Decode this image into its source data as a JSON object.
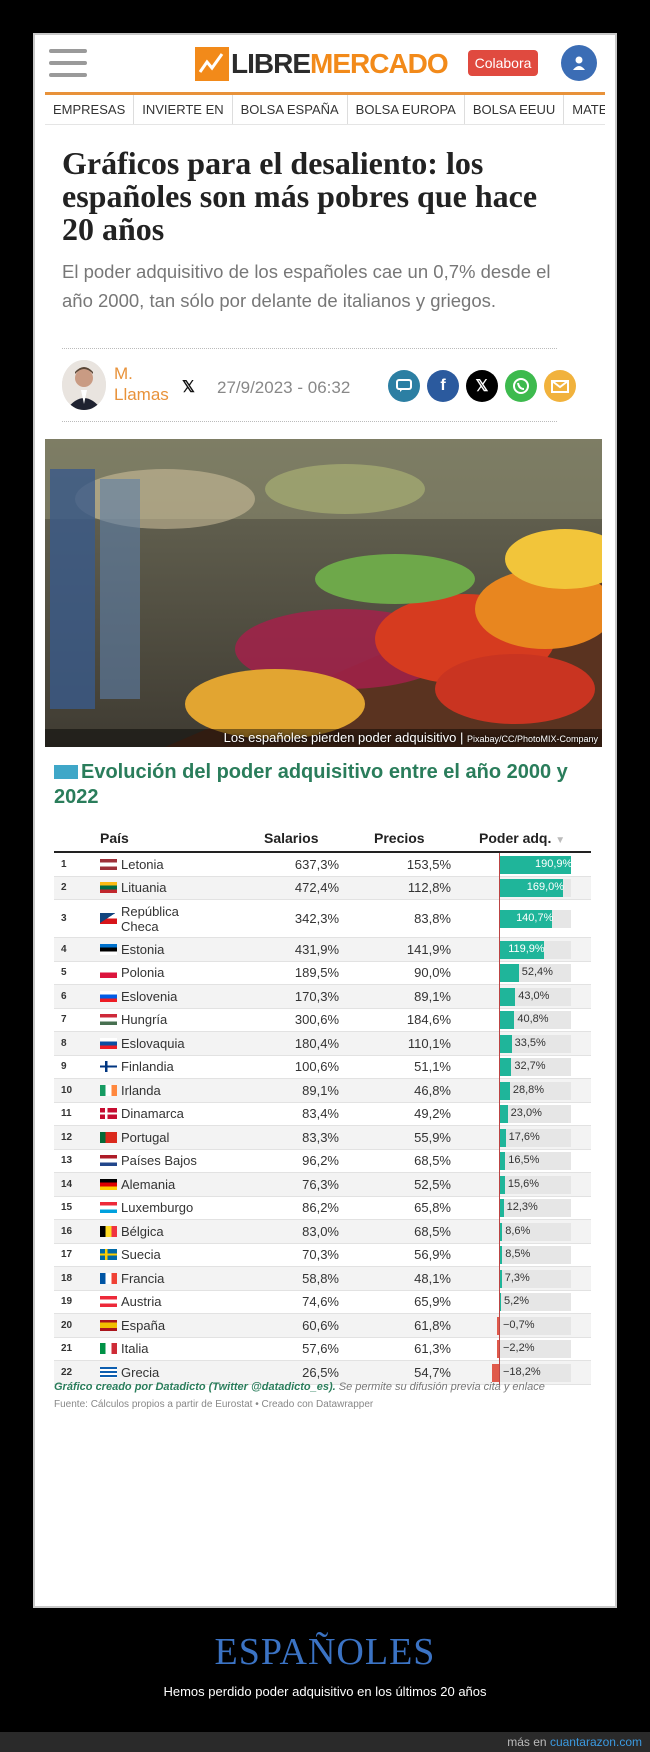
{
  "header": {
    "logo_libre": "LIBRE",
    "logo_mercado": "MERCADO",
    "colabora_label": "Colabora",
    "accent_color": "#f28a1a"
  },
  "nav": [
    "EMPRESAS",
    "INVIERTE EN",
    "BOLSA ESPAÑA",
    "BOLSA EUROPA",
    "BOLSA EEUU",
    "MATERIAS PR"
  ],
  "article": {
    "title": "Gráficos para el desaliento: los españoles son más pobres que hace 20 años",
    "subtitle": "El poder adquisitivo de los españoles cae un 0,7% desde el año 2000, tan sólo por delante de italianos y griegos.",
    "author": "M. Llamas",
    "date": "27/9/2023 - 06:32",
    "photo_caption": "Los españoles pierden poder adquisitivo",
    "photo_credit": "Pixabay/CC/PhotoMIX-Company"
  },
  "share_icons": [
    "comment-icon",
    "facebook-icon",
    "x-icon",
    "whatsapp-icon",
    "email-icon"
  ],
  "chart_data": {
    "type": "table",
    "title": "Evolución del poder adquisitivo entre el año 2000 y 2022",
    "columns": [
      "País",
      "Salarios",
      "Precios",
      "Poder adq."
    ],
    "rows": [
      {
        "rank": "1",
        "country": "Letonia",
        "salarios": "637,3%",
        "precios": "153,5%",
        "poder": "190,9%",
        "value": 190.9,
        "flag": "lv"
      },
      {
        "rank": "2",
        "country": "Lituania",
        "salarios": "472,4%",
        "precios": "112,8%",
        "poder": "169,0%",
        "value": 169.0,
        "flag": "lt"
      },
      {
        "rank": "3",
        "country": "República Checa",
        "salarios": "342,3%",
        "precios": "83,8%",
        "poder": "140,7%",
        "value": 140.7,
        "flag": "cz"
      },
      {
        "rank": "4",
        "country": "Estonia",
        "salarios": "431,9%",
        "precios": "141,9%",
        "poder": "119,9%",
        "value": 119.9,
        "flag": "ee"
      },
      {
        "rank": "5",
        "country": "Polonia",
        "salarios": "189,5%",
        "precios": "90,0%",
        "poder": "52,4%",
        "value": 52.4,
        "flag": "pl"
      },
      {
        "rank": "6",
        "country": "Eslovenia",
        "salarios": "170,3%",
        "precios": "89,1%",
        "poder": "43,0%",
        "value": 43.0,
        "flag": "si"
      },
      {
        "rank": "7",
        "country": "Hungría",
        "salarios": "300,6%",
        "precios": "184,6%",
        "poder": "40,8%",
        "value": 40.8,
        "flag": "hu"
      },
      {
        "rank": "8",
        "country": "Eslovaquia",
        "salarios": "180,4%",
        "precios": "110,1%",
        "poder": "33,5%",
        "value": 33.5,
        "flag": "sk"
      },
      {
        "rank": "9",
        "country": "Finlandia",
        "salarios": "100,6%",
        "precios": "51,1%",
        "poder": "32,7%",
        "value": 32.7,
        "flag": "fi"
      },
      {
        "rank": "10",
        "country": "Irlanda",
        "salarios": "89,1%",
        "precios": "46,8%",
        "poder": "28,8%",
        "value": 28.8,
        "flag": "ie"
      },
      {
        "rank": "11",
        "country": "Dinamarca",
        "salarios": "83,4%",
        "precios": "49,2%",
        "poder": "23,0%",
        "value": 23.0,
        "flag": "dk"
      },
      {
        "rank": "12",
        "country": "Portugal",
        "salarios": "83,3%",
        "precios": "55,9%",
        "poder": "17,6%",
        "value": 17.6,
        "flag": "pt"
      },
      {
        "rank": "13",
        "country": "Países Bajos",
        "salarios": "96,2%",
        "precios": "68,5%",
        "poder": "16,5%",
        "value": 16.5,
        "flag": "nl"
      },
      {
        "rank": "14",
        "country": "Alemania",
        "salarios": "76,3%",
        "precios": "52,5%",
        "poder": "15,6%",
        "value": 15.6,
        "flag": "de"
      },
      {
        "rank": "15",
        "country": "Luxemburgo",
        "salarios": "86,2%",
        "precios": "65,8%",
        "poder": "12,3%",
        "value": 12.3,
        "flag": "lu"
      },
      {
        "rank": "16",
        "country": "Bélgica",
        "salarios": "83,0%",
        "precios": "68,5%",
        "poder": "8,6%",
        "value": 8.6,
        "flag": "be"
      },
      {
        "rank": "17",
        "country": "Suecia",
        "salarios": "70,3%",
        "precios": "56,9%",
        "poder": "8,5%",
        "value": 8.5,
        "flag": "se"
      },
      {
        "rank": "18",
        "country": "Francia",
        "salarios": "58,8%",
        "precios": "48,1%",
        "poder": "7,3%",
        "value": 7.3,
        "flag": "fr"
      },
      {
        "rank": "19",
        "country": "Austria",
        "salarios": "74,6%",
        "precios": "65,9%",
        "poder": "5,2%",
        "value": 5.2,
        "flag": "at"
      },
      {
        "rank": "20",
        "country": "España",
        "salarios": "60,6%",
        "precios": "61,8%",
        "poder": "−0,7%",
        "value": -0.7,
        "flag": "es"
      },
      {
        "rank": "21",
        "country": "Italia",
        "salarios": "57,6%",
        "precios": "61,3%",
        "poder": "−2,2%",
        "value": -2.2,
        "flag": "it"
      },
      {
        "rank": "22",
        "country": "Grecia",
        "salarios": "26,5%",
        "precios": "54,7%",
        "poder": "−18,2%",
        "value": -18.2,
        "flag": "gr"
      }
    ],
    "positive_color": "#1fb59a",
    "negative_color": "#e05a4b"
  },
  "credits": {
    "line1_bold": "Gráfico creado por Datadicto (Twitter @datadicto_es).",
    "line1_rest": "Se permite su difusión previa cita y enlace",
    "line2": "Fuente: Cálculos propios a partir de Eurostat • Creado con Datawrapper"
  },
  "footer": {
    "title": "ESPAÑOLES",
    "subtitle": "Hemos perdido poder adquisitivo en los últimos 20 años",
    "more_prefix": "más en",
    "more_link": "cuantarazon.com"
  }
}
